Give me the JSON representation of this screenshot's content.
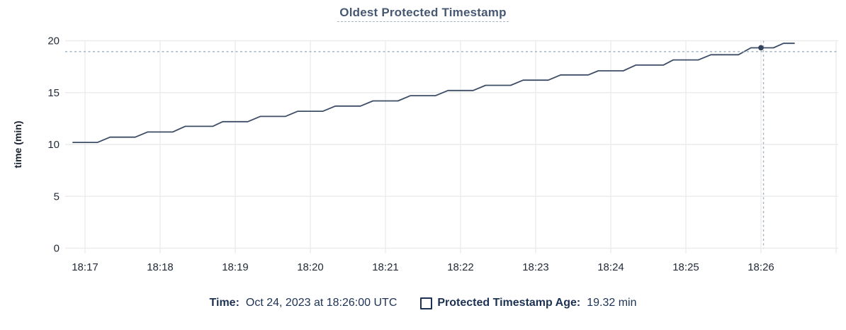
{
  "header": {
    "title": "Oldest Protected Timestamp"
  },
  "chart_data": {
    "type": "line",
    "title": "Oldest Protected Timestamp",
    "xlabel": "",
    "ylabel": "time (min)",
    "ylim": [
      0,
      20
    ],
    "y_ticks": [
      0,
      5,
      10,
      15,
      20
    ],
    "x_ticks": [
      "18:17",
      "18:18",
      "18:19",
      "18:20",
      "18:21",
      "18:22",
      "18:23",
      "18:24",
      "18:25",
      "18:26"
    ],
    "grid": true,
    "legend_position": "bottom",
    "series": [
      {
        "name": "Protected Timestamp Age",
        "unit": "min",
        "points": [
          [
            "18:16:50",
            10.2
          ],
          [
            "18:17:10",
            10.2
          ],
          [
            "18:17:20",
            10.7
          ],
          [
            "18:17:40",
            10.7
          ],
          [
            "18:17:50",
            11.2
          ],
          [
            "18:18:10",
            11.2
          ],
          [
            "18:18:20",
            11.75
          ],
          [
            "18:18:42",
            11.75
          ],
          [
            "18:18:50",
            12.2
          ],
          [
            "18:19:10",
            12.2
          ],
          [
            "18:19:20",
            12.7
          ],
          [
            "18:19:40",
            12.7
          ],
          [
            "18:19:50",
            13.2
          ],
          [
            "18:20:10",
            13.2
          ],
          [
            "18:20:20",
            13.7
          ],
          [
            "18:20:40",
            13.7
          ],
          [
            "18:20:50",
            14.2
          ],
          [
            "18:21:10",
            14.2
          ],
          [
            "18:21:20",
            14.7
          ],
          [
            "18:21:40",
            14.7
          ],
          [
            "18:21:50",
            15.2
          ],
          [
            "18:22:10",
            15.2
          ],
          [
            "18:22:20",
            15.7
          ],
          [
            "18:22:40",
            15.7
          ],
          [
            "18:22:50",
            16.2
          ],
          [
            "18:23:10",
            16.2
          ],
          [
            "18:23:20",
            16.7
          ],
          [
            "18:23:42",
            16.7
          ],
          [
            "18:23:50",
            17.1
          ],
          [
            "18:24:10",
            17.1
          ],
          [
            "18:24:20",
            17.65
          ],
          [
            "18:24:42",
            17.65
          ],
          [
            "18:24:50",
            18.15
          ],
          [
            "18:25:10",
            18.15
          ],
          [
            "18:25:20",
            18.65
          ],
          [
            "18:25:42",
            18.65
          ],
          [
            "18:25:52",
            19.32
          ],
          [
            "18:26:10",
            19.32
          ],
          [
            "18:26:18",
            19.75
          ],
          [
            "18:26:27",
            19.75
          ]
        ]
      }
    ],
    "hover": {
      "point_time": "18:26:00",
      "point_value": 19.32,
      "crosshair_time": "18:26:02",
      "crosshair_value": 18.95
    }
  },
  "legend": {
    "time_label": "Time:",
    "time_value": "Oct 24, 2023 at 18:26:00 UTC",
    "series_label": "Protected Timestamp Age:",
    "series_value": "19.32 min"
  },
  "colors": {
    "line": "#3d4d66",
    "dot": "#33415a",
    "crosshair": "#a4b5c6",
    "grid": "#ececec",
    "axis_text": "#232b3a",
    "axis_title_text": "#1b2330",
    "title_text": "#475872",
    "legend_text": "#1d3252"
  }
}
